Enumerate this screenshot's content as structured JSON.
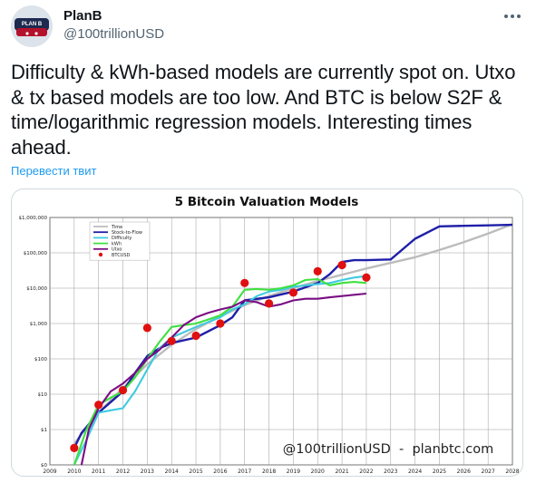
{
  "tweet": {
    "author_name": "PlanB",
    "author_handle": "@100trillionUSD",
    "text": "Difficulty & kWh-based models are currently spot on. Utxo & tx based models are too low. And BTC is below S2F & time/logarithmic regression models. Interesting times ahead.",
    "translate_label": "Перевести твит",
    "more_icon": "more-dots-icon"
  },
  "chart_data": {
    "type": "line",
    "title": "5 Bitcoin Valuation Models",
    "xlabel": "",
    "ylabel": "",
    "y_scale": "log",
    "ylim": [
      0.1,
      1000000
    ],
    "xlim": [
      2009,
      2028
    ],
    "x_ticks": [
      "2009",
      "2010",
      "2011",
      "2012",
      "2013",
      "2014",
      "2015",
      "2016",
      "2017",
      "2018",
      "2019",
      "2020",
      "2021",
      "2022",
      "2023",
      "2024",
      "2025",
      "2026",
      "2027",
      "2028"
    ],
    "y_ticks": [
      {
        "value": 0.1,
        "label": "$0"
      },
      {
        "value": 1,
        "label": "$1"
      },
      {
        "value": 10,
        "label": "$10"
      },
      {
        "value": 100,
        "label": "$100"
      },
      {
        "value": 1000,
        "label": "$1,000"
      },
      {
        "value": 10000,
        "label": "$10,000"
      },
      {
        "value": 100000,
        "label": "$100,000"
      },
      {
        "value": 1000000,
        "label": "$1,000,000"
      }
    ],
    "grid": true,
    "legend_position": "top-left",
    "watermark": "@100trillionUSD  -  planbtc.com",
    "series": [
      {
        "name": "Time",
        "color": "#bcbcbc",
        "kind": "line",
        "x": [
          2010,
          2011,
          2012,
          2013,
          2014,
          2015,
          2016,
          2017,
          2018,
          2019,
          2020,
          2021,
          2022,
          2023,
          2024,
          2025,
          2026,
          2027,
          2028
        ],
        "y": [
          0.4,
          3,
          15,
          70,
          250,
          700,
          1600,
          3300,
          6000,
          10000,
          16000,
          24000,
          36000,
          52000,
          75000,
          120000,
          200000,
          350000,
          650000
        ]
      },
      {
        "name": "Stock-to-Flow",
        "color": "#1f1fa8",
        "kind": "line",
        "x": [
          2010,
          2010.3,
          2011,
          2011.5,
          2012,
          2012.5,
          2013,
          2013.5,
          2014,
          2015,
          2016,
          2016.5,
          2017,
          2018,
          2019,
          2020,
          2020.5,
          2021,
          2021.5,
          2022,
          2023,
          2024,
          2025,
          2026,
          2027,
          2028
        ],
        "y": [
          0.3,
          0.8,
          3,
          6,
          12,
          40,
          120,
          200,
          280,
          400,
          900,
          1500,
          4500,
          5500,
          8000,
          14000,
          25000,
          55000,
          62000,
          62000,
          65000,
          250000,
          560000,
          580000,
          600000,
          620000
        ]
      },
      {
        "name": "Difficulty",
        "color": "#3ecbe0",
        "kind": "line",
        "x": [
          2010,
          2010.5,
          2011,
          2011.5,
          2012,
          2012.5,
          2013,
          2013.5,
          2014,
          2015,
          2016,
          2016.5,
          2017,
          2017.5,
          2018,
          2018.5,
          2019,
          2019.5,
          2020,
          2020.5,
          2021,
          2021.5,
          2022
        ],
        "y": [
          0.1,
          0.5,
          3,
          3.5,
          4,
          12,
          50,
          200,
          400,
          800,
          1500,
          2500,
          3500,
          6000,
          8000,
          9000,
          11000,
          12000,
          13000,
          14000,
          17000,
          20000,
          22000
        ]
      },
      {
        "name": "kWh",
        "color": "#3fe03f",
        "kind": "line",
        "x": [
          2010,
          2010.5,
          2011,
          2011.5,
          2012,
          2012.5,
          2013,
          2013.5,
          2014,
          2014.5,
          2015,
          2015.5,
          2016,
          2016.5,
          2017,
          2017.5,
          2018,
          2018.5,
          2019,
          2019.5,
          2020,
          2020.5,
          2021,
          2021.5,
          2022
        ],
        "y": [
          0.1,
          1,
          5,
          8,
          12,
          30,
          100,
          300,
          800,
          900,
          1000,
          1300,
          1700,
          3000,
          9000,
          9500,
          9000,
          10000,
          12000,
          17000,
          18000,
          12000,
          14000,
          15000,
          14000
        ]
      },
      {
        "name": "Utxo",
        "color": "#7a0d84",
        "kind": "line",
        "x": [
          2010.3,
          2010.6,
          2011,
          2011.5,
          2012,
          2012.5,
          2013,
          2013.5,
          2014,
          2014.5,
          2015,
          2015.5,
          2016,
          2016.5,
          2017,
          2017.5,
          2018,
          2018.5,
          2019,
          2019.5,
          2020,
          2020.5,
          2021,
          2021.5,
          2022
        ],
        "y": [
          0.1,
          1,
          4,
          12,
          20,
          40,
          100,
          180,
          400,
          900,
          1500,
          2000,
          2500,
          3000,
          4500,
          4000,
          3000,
          3500,
          4500,
          5000,
          5000,
          5500,
          6000,
          6500,
          7000
        ]
      },
      {
        "name": "BTCUSD",
        "color": "#e01010",
        "kind": "scatter",
        "x": [
          2010,
          2011,
          2012,
          2013,
          2014,
          2015,
          2016,
          2017,
          2018,
          2019,
          2020,
          2021,
          2022
        ],
        "y": [
          0.3,
          5,
          13,
          750,
          320,
          450,
          1000,
          14000,
          3700,
          7500,
          30000,
          45000,
          20000
        ]
      }
    ]
  }
}
